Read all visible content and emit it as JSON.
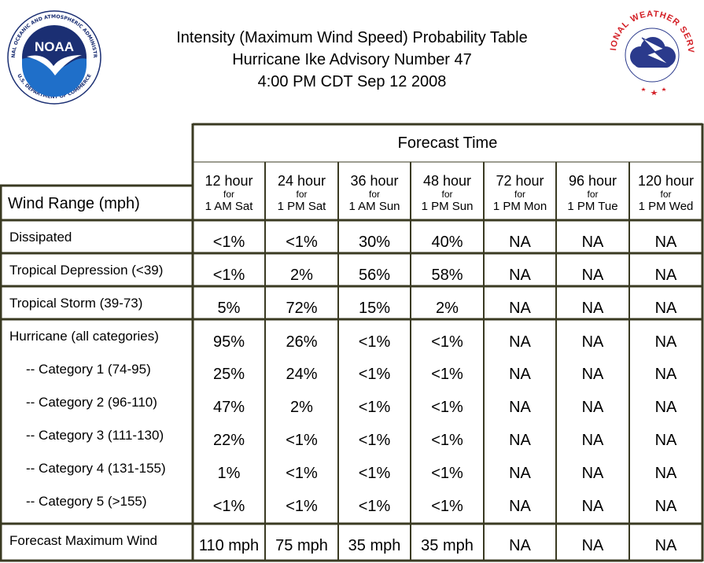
{
  "header": {
    "title_lines": [
      "Intensity (Maximum Wind Speed) Probability Table",
      "Hurricane Ike Advisory Number 47",
      "4:00 PM CDT Sep 12 2008"
    ]
  },
  "noaa_logo": {
    "icon": "noaa-logo-icon",
    "text": "NOAA",
    "ring_text": "NATIONAL OCEANIC AND ATMOSPHERIC ADMINISTRATION",
    "ring_text_bottom": "U.S. DEPARTMENT OF COMMERCE",
    "colors": {
      "navy": "#1b2f73",
      "blue": "#1f6fc9"
    }
  },
  "nws_logo": {
    "icon": "nws-logo-icon",
    "ring_text": "NATIONAL WEATHER SERVICE",
    "colors": {
      "red": "#d42027",
      "cloud": "#2b3a8c"
    }
  },
  "table": {
    "forecast_time_label": "Forecast Time",
    "wind_range_label": "Wind Range (mph)",
    "columns": [
      {
        "hours": "12 hour",
        "for": "for",
        "when": "1 AM Sat"
      },
      {
        "hours": "24 hour",
        "for": "for",
        "when": "1 PM Sat"
      },
      {
        "hours": "36 hour",
        "for": "for",
        "when": "1 AM Sun"
      },
      {
        "hours": "48 hour",
        "for": "for",
        "when": "1 PM Sun"
      },
      {
        "hours": "72 hour",
        "for": "for",
        "when": "1 PM Mon"
      },
      {
        "hours": "96 hour",
        "for": "for",
        "when": "1 PM Tue"
      },
      {
        "hours": "120 hour",
        "for": "for",
        "when": "1 PM Wed"
      }
    ],
    "rows": [
      {
        "label": "Dissipated",
        "values": [
          "<1%",
          "<1%",
          "30%",
          "40%",
          "NA",
          "NA",
          "NA"
        ]
      },
      {
        "label": "Tropical Depression (<39)",
        "values": [
          "<1%",
          "2%",
          "56%",
          "58%",
          "NA",
          "NA",
          "NA"
        ]
      },
      {
        "label": "Tropical Storm (39-73)",
        "values": [
          "5%",
          "72%",
          "15%",
          "2%",
          "NA",
          "NA",
          "NA"
        ]
      },
      {
        "label": "Hurricane (all categories)",
        "values": [
          "95%",
          "26%",
          "<1%",
          "<1%",
          "NA",
          "NA",
          "NA"
        ]
      },
      {
        "label": "-- Category 1 (74-95)",
        "values": [
          "25%",
          "24%",
          "<1%",
          "<1%",
          "NA",
          "NA",
          "NA"
        ]
      },
      {
        "label": "-- Category 2 (96-110)",
        "values": [
          "47%",
          "2%",
          "<1%",
          "<1%",
          "NA",
          "NA",
          "NA"
        ]
      },
      {
        "label": "-- Category 3 (111-130)",
        "values": [
          "22%",
          "<1%",
          "<1%",
          "<1%",
          "NA",
          "NA",
          "NA"
        ]
      },
      {
        "label": "-- Category 4 (131-155)",
        "values": [
          "1%",
          "<1%",
          "<1%",
          "<1%",
          "NA",
          "NA",
          "NA"
        ]
      },
      {
        "label": "-- Category 5 (>155)",
        "values": [
          "<1%",
          "<1%",
          "<1%",
          "<1%",
          "NA",
          "NA",
          "NA"
        ]
      },
      {
        "label": "Forecast Maximum Wind",
        "values": [
          "110 mph",
          "75 mph",
          "35 mph",
          "35 mph",
          "NA",
          "NA",
          "NA"
        ]
      }
    ],
    "border_color": "#3a3a22"
  }
}
